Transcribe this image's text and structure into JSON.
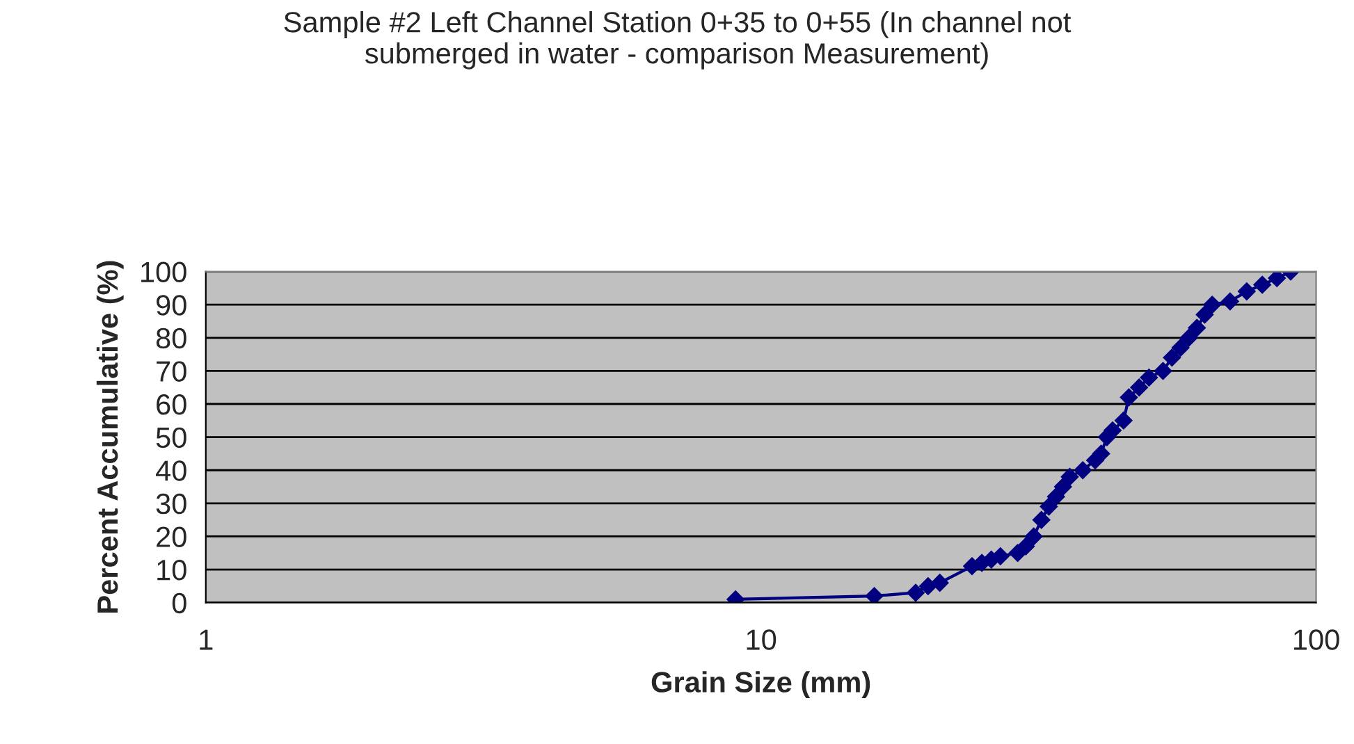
{
  "chart_data": {
    "type": "line",
    "title": "Sample #2 Left Channel Station 0+35 to 0+55 (In channel not\nsubmerged in water - comparison Measurement)",
    "xlabel": "Grain Size (mm)",
    "ylabel": "Percent Accumulative (%)",
    "log": "x",
    "grid": "y",
    "marker": "diamond",
    "line_style": "solid",
    "xlim": [
      1,
      100
    ],
    "xticks": [
      1,
      10,
      100
    ],
    "ylim": [
      0,
      100
    ],
    "yticks": [
      0,
      10,
      20,
      30,
      40,
      50,
      60,
      70,
      80,
      90,
      100
    ],
    "series": [
      {
        "color": "#000080",
        "x": [
          9,
          16,
          19,
          20,
          21,
          24,
          25,
          26,
          27,
          29,
          30,
          31,
          32,
          33,
          34,
          35,
          36,
          38,
          40,
          41,
          42,
          43,
          45,
          46,
          48,
          50,
          53,
          55,
          57,
          59,
          61,
          63,
          65,
          70,
          75,
          80,
          85,
          90
        ],
        "values": [
          1,
          2,
          3,
          5,
          6,
          11,
          12,
          13,
          14,
          15,
          17,
          20,
          25,
          29,
          32,
          35,
          38,
          40,
          43,
          45,
          50,
          52,
          55,
          62,
          65,
          68,
          70,
          74,
          77,
          80,
          83,
          87,
          90,
          91,
          94,
          96,
          98,
          100
        ]
      }
    ]
  }
}
